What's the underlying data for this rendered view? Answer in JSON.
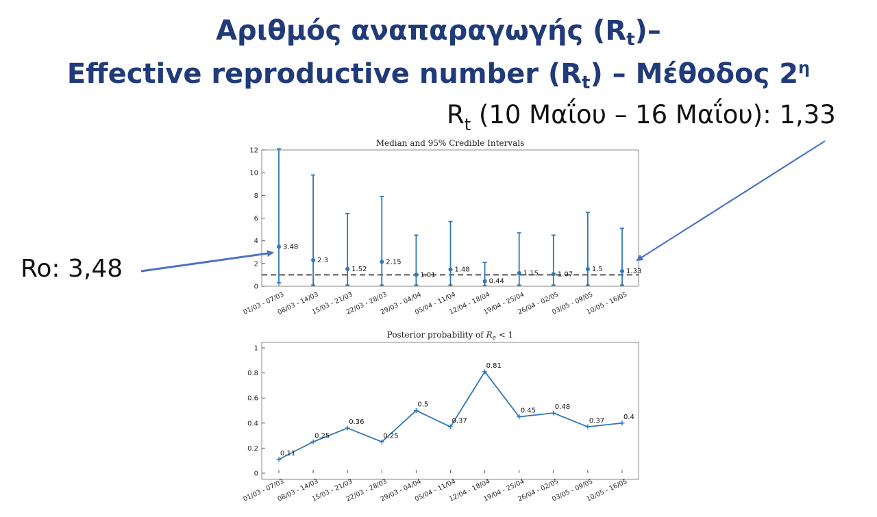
{
  "slide": {
    "title_line1_main": "Αριθμός αναπαραγωγής (R",
    "title_line1_sub": "t",
    "title_line1_end": ")–",
    "title_line2_main": "Effective reproductive number (R",
    "title_line2_sub": "t",
    "title_line2_mid": ") – Μέθοδος 2",
    "title_line2_sup": "η"
  },
  "annotations": {
    "rt_prefix": "R",
    "rt_sub": "t",
    "rt_text": " (10 Μαΐου – 16 Μαΐου): 1,33",
    "ro_text": "Ro: 3,48"
  },
  "colors": {
    "series": "#2f78b8",
    "arrow": "#4a72c4",
    "reference_line": "#222222",
    "title": "#203a7a"
  },
  "chart_data": [
    {
      "type": "errorbar",
      "title": "Median and 95% Credible Intervals",
      "categories": [
        "01/03 - 07/03",
        "08/03 - 14/03",
        "15/03 - 21/03",
        "22/03 - 28/03",
        "29/03 - 04/04",
        "05/04 - 11/04",
        "12/04 - 18/04",
        "19/04 - 25/04",
        "26/04 - 02/05",
        "03/05 - 09/05",
        "10/05 - 16/05"
      ],
      "median": [
        3.48,
        2.3,
        1.52,
        2.15,
        1.01,
        1.48,
        0.44,
        1.15,
        1.07,
        1.5,
        1.33
      ],
      "median_labels": [
        "3.48",
        "2.3",
        "1.52",
        "2.15",
        "1.01",
        "1.48",
        "0.44",
        "1.15",
        "1.07",
        "1.5",
        "1.33"
      ],
      "lower": [
        0.3,
        0.1,
        0.1,
        0.1,
        0.1,
        0.1,
        0.05,
        0.1,
        0.1,
        0.1,
        0.1
      ],
      "upper": [
        12.1,
        9.8,
        6.4,
        7.9,
        4.5,
        5.7,
        2.1,
        4.7,
        4.5,
        6.5,
        5.1
      ],
      "reference_line": 1,
      "ylim": [
        0,
        12
      ],
      "yticks": [
        0,
        2,
        4,
        6,
        8,
        10,
        12
      ],
      "ytick_labels": [
        "0",
        "2",
        "4",
        "6",
        "8",
        "10",
        "12"
      ],
      "grid": false
    },
    {
      "type": "line",
      "title_main": "Posterior probability of ",
      "title_var": "R",
      "title_var_sub": "e",
      "title_end": " < 1",
      "categories": [
        "01/03 - 07/03",
        "08/03 - 14/03",
        "15/03 - 21/03",
        "22/03 - 28/03",
        "29/03 - 04/04",
        "05/04 - 11/04",
        "12/04 - 18/04",
        "19/04 - 25/04",
        "26/04 - 02/05",
        "03/05 - 09/05",
        "10/05 - 16/05"
      ],
      "values": [
        0.11,
        0.25,
        0.36,
        0.25,
        0.5,
        0.37,
        0.81,
        0.45,
        0.48,
        0.37,
        0.4
      ],
      "value_labels": [
        "0.11",
        "0.25",
        "0.36",
        "0.25",
        "0.5",
        "0.37",
        "0.81",
        "0.45",
        "0.48",
        "0.37",
        "0.4"
      ],
      "ylim": [
        0,
        1
      ],
      "yticks": [
        0,
        0.2,
        0.4,
        0.6,
        0.8,
        1
      ],
      "ytick_labels": [
        "0",
        "0.2",
        "0.4",
        "0.6",
        "0.8",
        "1"
      ],
      "grid": false
    }
  ]
}
